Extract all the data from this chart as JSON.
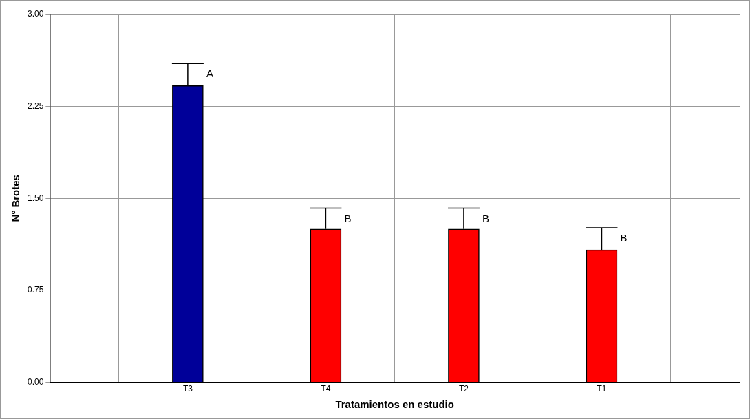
{
  "chart_data": {
    "type": "bar",
    "xlabel": "Tratamientos en estudio",
    "ylabel": "N° Brotes",
    "categories": [
      "T3",
      "T4",
      "T2",
      "T1"
    ],
    "values": [
      2.42,
      1.25,
      1.25,
      1.08
    ],
    "colors": [
      "#000099",
      "#ff0000",
      "#ff0000",
      "#ff0000"
    ],
    "errors": [
      [
        2.42,
        2.6
      ],
      [
        1.25,
        1.42
      ],
      [
        1.25,
        1.42
      ],
      [
        1.08,
        1.26
      ]
    ],
    "ylim": [
      0,
      3
    ],
    "yticks": [
      {
        "value": 0,
        "label": "0.00"
      },
      {
        "value": 0.75,
        "label": "0.75"
      },
      {
        "value": 1.5,
        "label": "1.50"
      },
      {
        "value": 2.25,
        "label": "2.25"
      },
      {
        "value": 3,
        "label": "3.00"
      }
    ],
    "grid": true,
    "legend": false,
    "annotations": [
      {
        "text": "A",
        "x": "T3",
        "y": 2.6
      },
      {
        "text": "B",
        "x": "T4",
        "y": 1.42
      },
      {
        "text": "B",
        "x": "T2",
        "y": 1.42
      },
      {
        "text": "B",
        "x": "T1",
        "y": 1.26
      }
    ]
  }
}
